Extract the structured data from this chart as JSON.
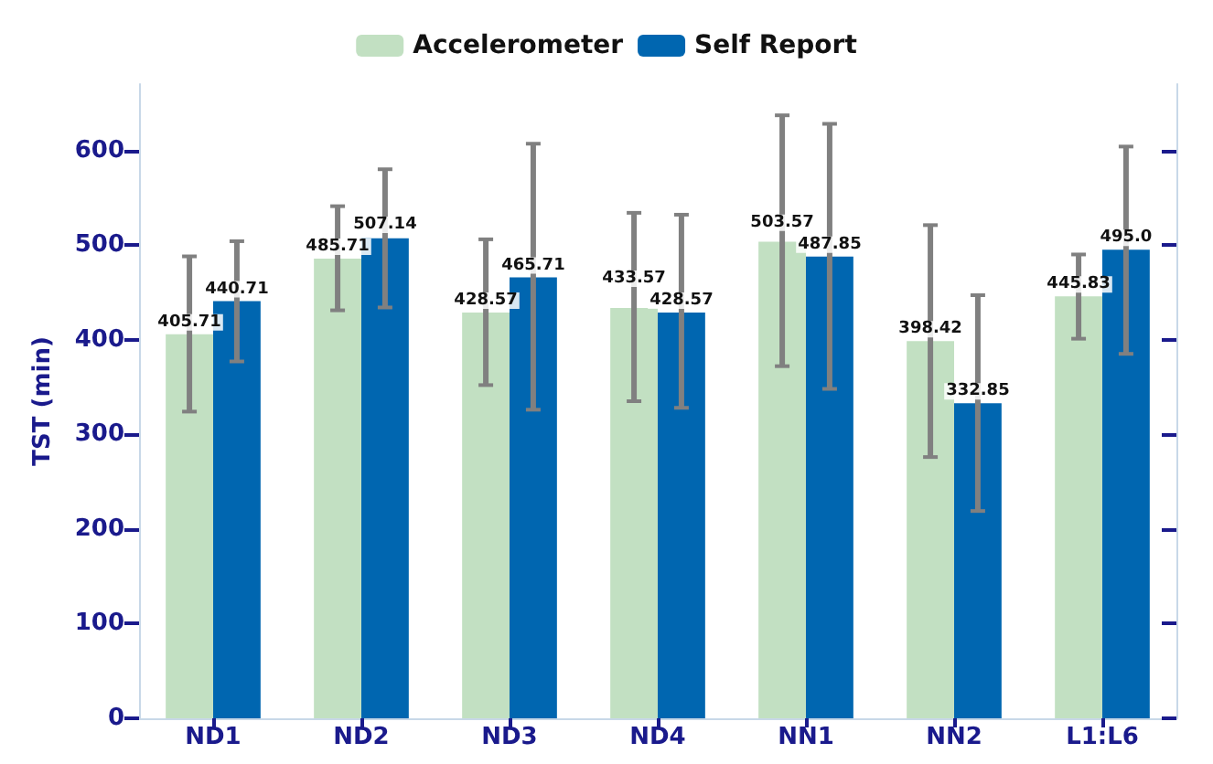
{
  "chart_data": {
    "type": "bar",
    "ylabel": "TST (min)",
    "categories": [
      "ND1",
      "ND2",
      "ND3",
      "ND4",
      "NN1",
      "NN2",
      "L1:L6"
    ],
    "series": [
      {
        "name": "Accelerometer",
        "color": "#c2e0c2",
        "values": [
          405.71,
          485.71,
          428.57,
          433.57,
          503.57,
          398.42,
          445.83
        ],
        "value_labels": [
          "405.71",
          "485.71",
          "428.57",
          "433.57",
          "503.57",
          "398.42",
          "445.83"
        ],
        "errors": [
          [
            324,
            488
          ],
          [
            431,
            541
          ],
          [
            352,
            506
          ],
          [
            335,
            534
          ],
          [
            372,
            637
          ],
          [
            276,
            521
          ],
          [
            401,
            490
          ]
        ]
      },
      {
        "name": "Self Report",
        "color": "#0066b0",
        "values": [
          440.71,
          507.14,
          465.71,
          428.57,
          487.85,
          332.85,
          495.0
        ],
        "value_labels": [
          "440.71",
          "507.14",
          "465.71",
          "428.57",
          "487.85",
          "332.85",
          "495.0"
        ],
        "errors": [
          [
            377,
            504
          ],
          [
            434,
            580
          ],
          [
            326,
            607
          ],
          [
            328,
            532
          ],
          [
            348,
            628
          ],
          [
            219,
            447
          ],
          [
            385,
            604
          ]
        ]
      }
    ],
    "ylim": [
      0,
      670
    ],
    "yticks": [
      0,
      100,
      200,
      300,
      400,
      500,
      600
    ],
    "grid": false,
    "legend": "top"
  }
}
